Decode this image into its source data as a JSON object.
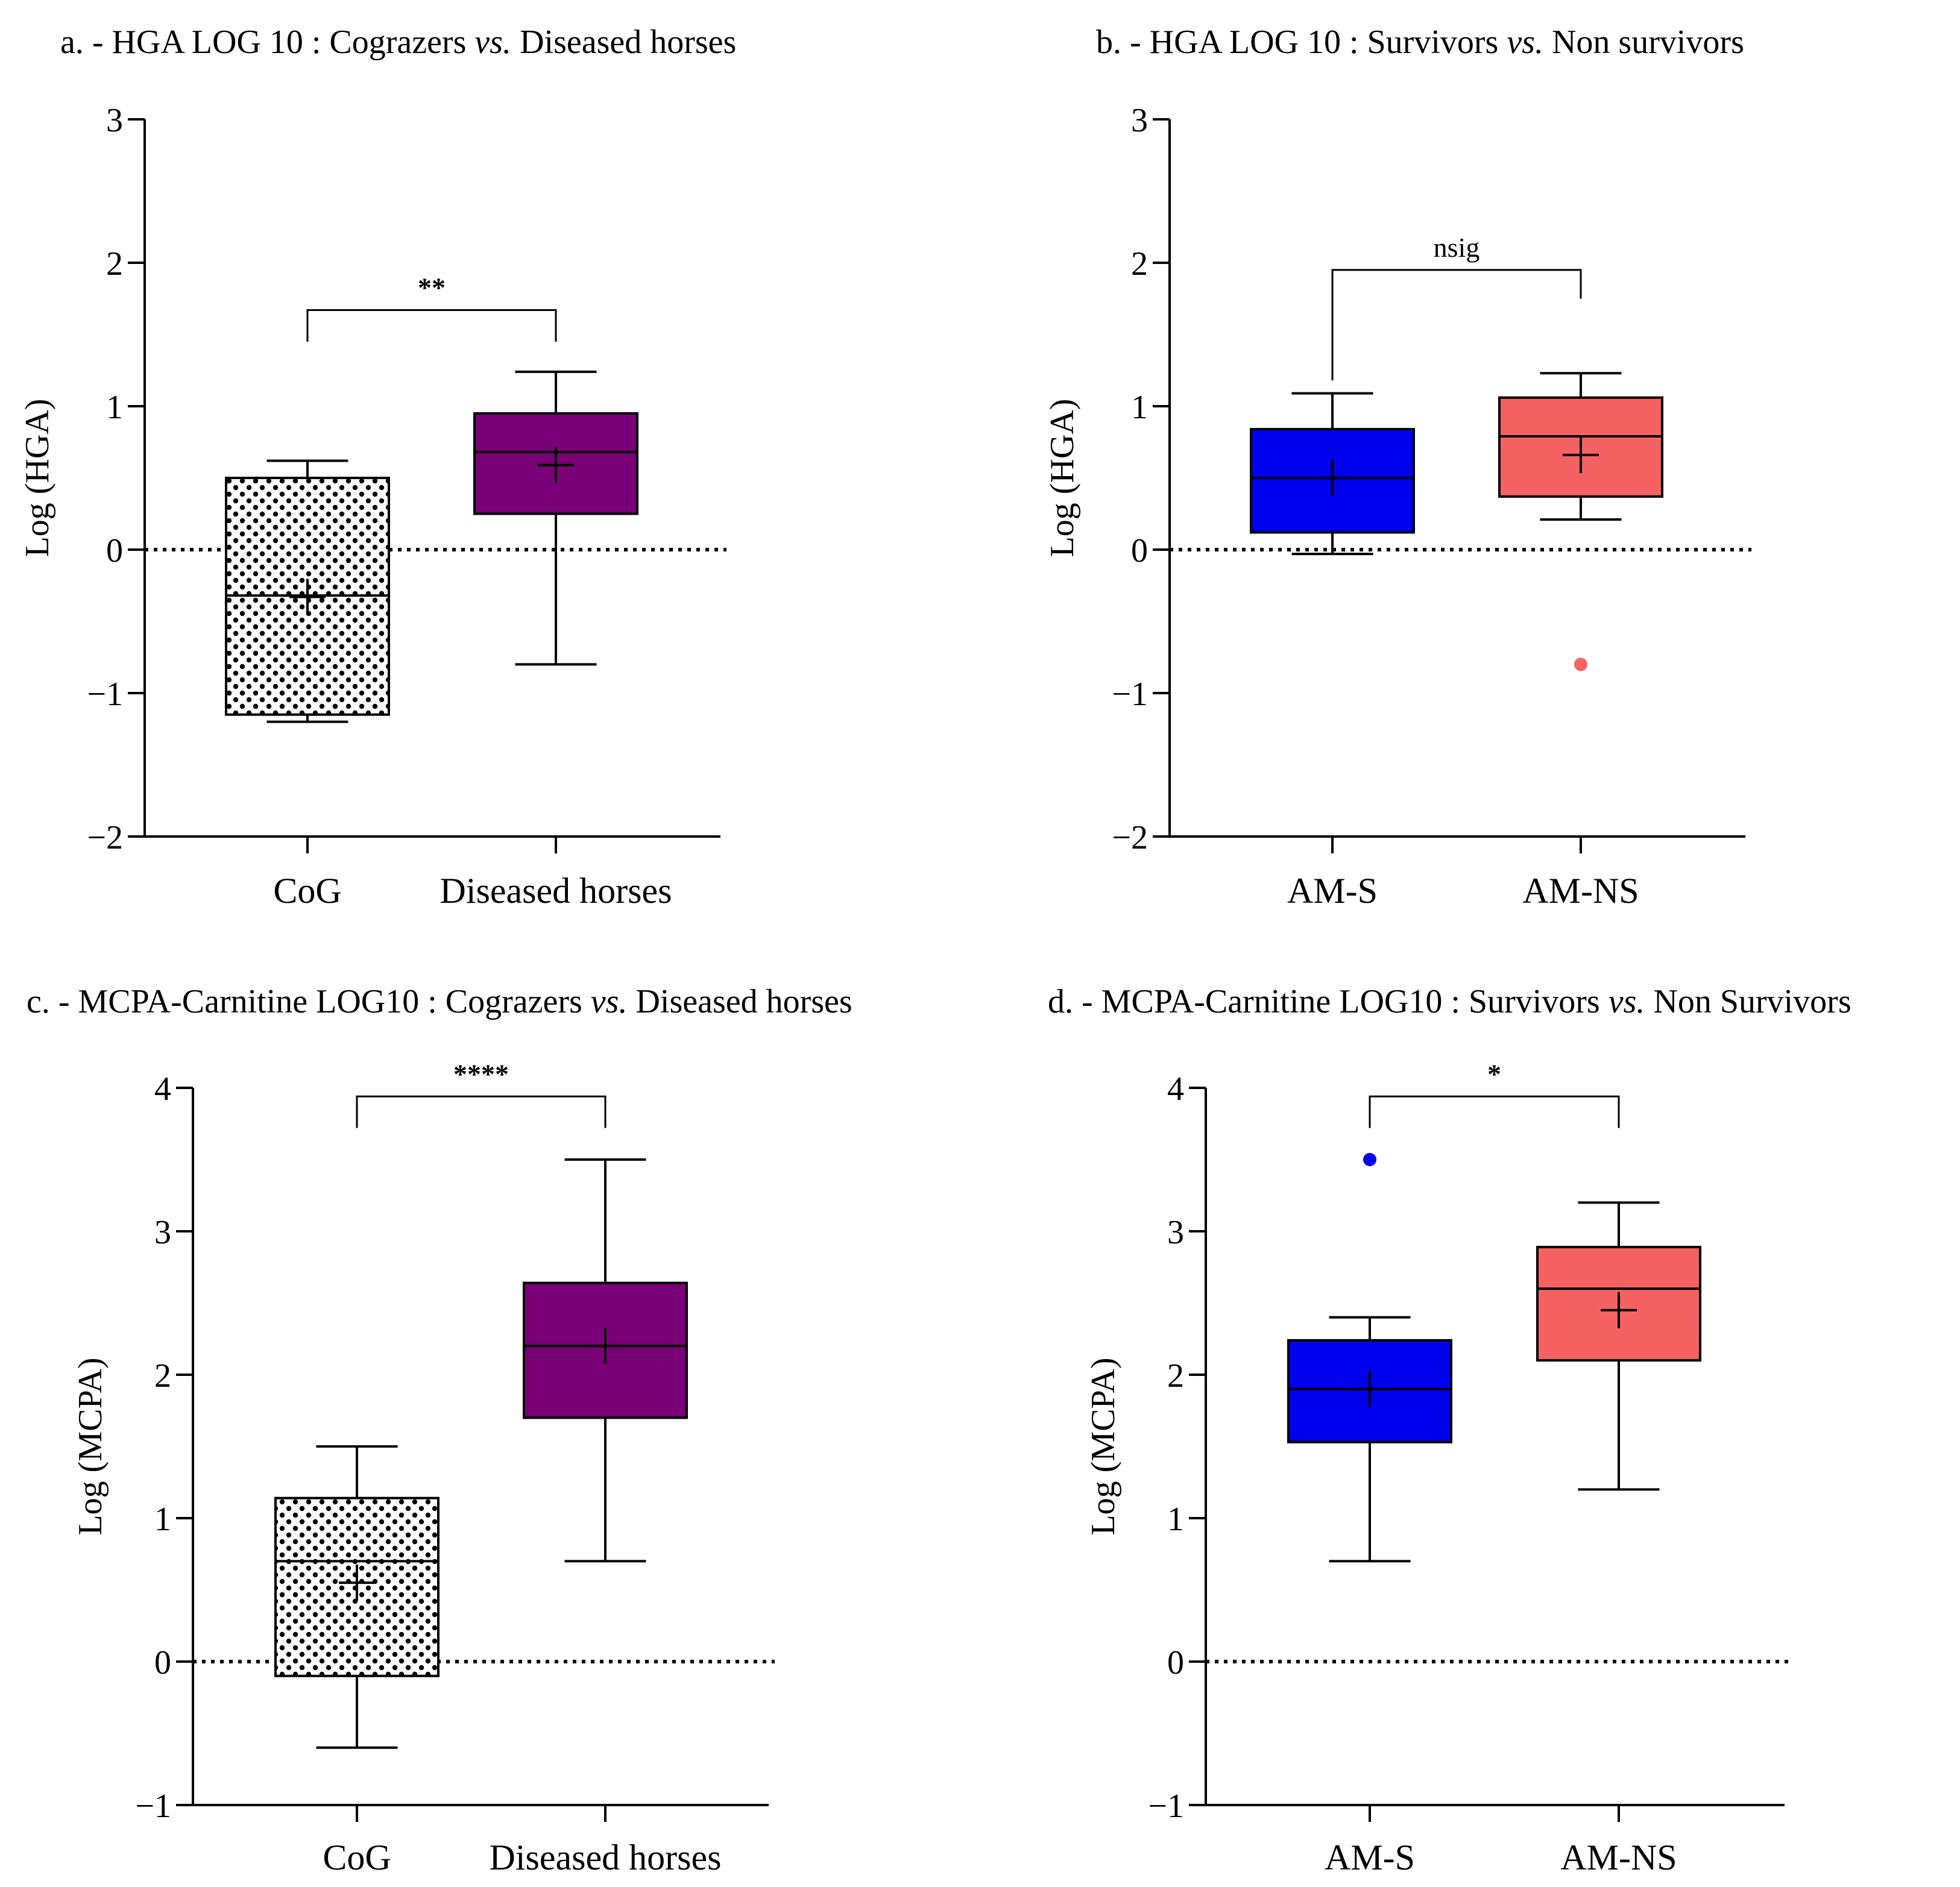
{
  "figure": {
    "bg": "#ffffff"
  },
  "colors": {
    "purple": "#7a0077",
    "blue": "#0000ee",
    "salmon": "#f66262",
    "dots_fill": "#ffffff",
    "dot_color": "#000000",
    "stroke": "#000000"
  },
  "chart_data": [
    {
      "id": "a",
      "type": "box",
      "title_parts": [
        "a. - HGA LOG 10 : Cograzers ",
        "vs.",
        " Diseased horses"
      ],
      "ylabel": "Log (HGA)",
      "ylim": [
        -2,
        3
      ],
      "yticks": [
        3,
        2,
        1,
        0,
        -1,
        -2
      ],
      "ytick_labels": [
        "3",
        "2",
        "1",
        "0",
        "−1",
        "−2"
      ],
      "reference_line": 0,
      "categories": [
        "CoG",
        "Diseased horses"
      ],
      "boxes": [
        {
          "name": "CoG",
          "whisker_low": -1.2,
          "q1": -1.15,
          "median": -0.32,
          "q3": 0.5,
          "whisker_high": 0.62,
          "mean": -0.33,
          "fill": "dots",
          "outliers": []
        },
        {
          "name": "Diseased horses",
          "whisker_low": -0.8,
          "q1": 0.25,
          "median": 0.68,
          "q3": 0.95,
          "whisker_high": 1.24,
          "mean": 0.59,
          "fill": "purple",
          "outliers": []
        }
      ],
      "significance": {
        "label": "**",
        "y": 1.67,
        "drop_left": 1.45,
        "drop_right": 1.45
      }
    },
    {
      "id": "b",
      "type": "box",
      "title_parts": [
        "b. - HGA LOG 10 : Survivors ",
        "vs.",
        " Non survivors"
      ],
      "ylabel": "Log (HGA)",
      "ylim": [
        -2,
        3
      ],
      "yticks": [
        3,
        2,
        1,
        0,
        -1,
        -2
      ],
      "ytick_labels": [
        "3",
        "2",
        "1",
        "0",
        "−1",
        "−2"
      ],
      "reference_line": 0,
      "categories": [
        "AM-S",
        "AM-NS"
      ],
      "boxes": [
        {
          "name": "AM-S",
          "whisker_low": -0.03,
          "q1": 0.12,
          "median": 0.5,
          "q3": 0.84,
          "whisker_high": 1.09,
          "mean": 0.5,
          "fill": "blue",
          "outliers": []
        },
        {
          "name": "AM-NS",
          "whisker_low": 0.21,
          "q1": 0.37,
          "median": 0.79,
          "q3": 1.06,
          "whisker_high": 1.23,
          "mean": 0.66,
          "fill": "salmon",
          "outliers": [
            -0.8
          ]
        }
      ],
      "significance": {
        "label": "nsig",
        "y": 1.95,
        "drop_left": 1.18,
        "drop_right": 1.75
      }
    },
    {
      "id": "c",
      "type": "box",
      "title_parts": [
        "c. - MCPA-Carnitine LOG10 : Cograzers ",
        "vs.",
        " Diseased horses"
      ],
      "ylabel": "Log (MCPA)",
      "ylim": [
        -1,
        4
      ],
      "yticks": [
        4,
        3,
        2,
        1,
        0,
        -1
      ],
      "ytick_labels": [
        "4",
        "3",
        "2",
        "1",
        "0",
        "−1"
      ],
      "reference_line": 0,
      "categories": [
        "CoG",
        "Diseased horses"
      ],
      "boxes": [
        {
          "name": "CoG",
          "whisker_low": -0.6,
          "q1": -0.1,
          "median": 0.7,
          "q3": 1.14,
          "whisker_high": 1.5,
          "mean": 0.55,
          "fill": "dots",
          "outliers": []
        },
        {
          "name": "Diseased horses",
          "whisker_low": 0.7,
          "q1": 1.7,
          "median": 2.2,
          "q3": 2.64,
          "whisker_high": 3.5,
          "mean": 2.2,
          "fill": "purple",
          "outliers": []
        }
      ],
      "significance": {
        "label": "****",
        "y": 3.94,
        "drop_left": 3.72,
        "drop_right": 3.72
      }
    },
    {
      "id": "d",
      "type": "box",
      "title_parts": [
        "d. - MCPA-Carnitine LOG10 : Survivors ",
        "vs.",
        " Non Survivors"
      ],
      "ylabel": "Log (MCPA)",
      "ylim": [
        -1,
        4
      ],
      "yticks": [
        4,
        3,
        2,
        1,
        0,
        -1
      ],
      "ytick_labels": [
        "4",
        "3",
        "2",
        "1",
        "0",
        "−1"
      ],
      "reference_line": 0,
      "categories": [
        "AM-S",
        "AM-NS"
      ],
      "boxes": [
        {
          "name": "AM-S",
          "whisker_low": 0.7,
          "q1": 1.53,
          "median": 1.9,
          "q3": 2.24,
          "whisker_high": 2.4,
          "mean": 1.9,
          "fill": "blue",
          "outliers": [
            3.5
          ]
        },
        {
          "name": "AM-NS",
          "whisker_low": 1.2,
          "q1": 2.1,
          "median": 2.6,
          "q3": 2.89,
          "whisker_high": 3.2,
          "mean": 2.45,
          "fill": "salmon",
          "outliers": []
        }
      ],
      "significance": {
        "label": "*",
        "y": 3.94,
        "drop_left": 3.72,
        "drop_right": 3.72
      }
    }
  ]
}
